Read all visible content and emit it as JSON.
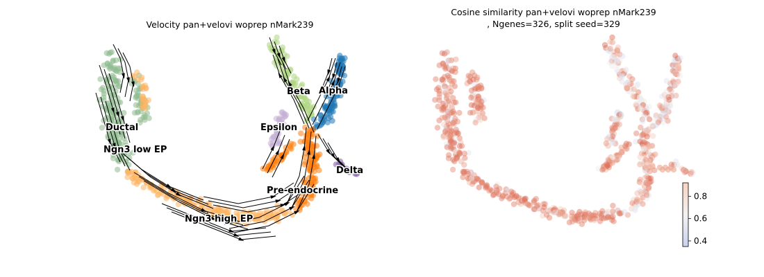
{
  "chart_data": [
    {
      "type": "scatter",
      "title": "Velocity pan+velovi woprep nMark239",
      "overlay": "velocity streamlines",
      "clusters": [
        {
          "name": "Ductal",
          "color": "#8fbc8f"
        },
        {
          "name": "Ngn3 low EP",
          "color": "#8fbc8f"
        },
        {
          "name": "Ngn3 high EP",
          "color": "#fdb462"
        },
        {
          "name": "Pre-endocrine",
          "color": "#ff7f0e"
        },
        {
          "name": "Epsilon",
          "color": "#c5b0d5"
        },
        {
          "name": "Beta",
          "color": "#aed581"
        },
        {
          "name": "Alpha",
          "color": "#1f77b4"
        },
        {
          "name": "Delta",
          "color": "#7e57a8"
        }
      ],
      "axes": "off"
    },
    {
      "type": "scatter",
      "title_line1": "Cosine similarity pan+velovi woprep nMark239",
      "title_line2": ", Ngenes=326, split seed=329",
      "colorbar": {
        "min": 0.35,
        "max": 0.92,
        "ticks": [
          "0.4",
          "0.6",
          "0.8"
        ],
        "cmap": "coolwarm"
      },
      "axes": "off"
    }
  ]
}
